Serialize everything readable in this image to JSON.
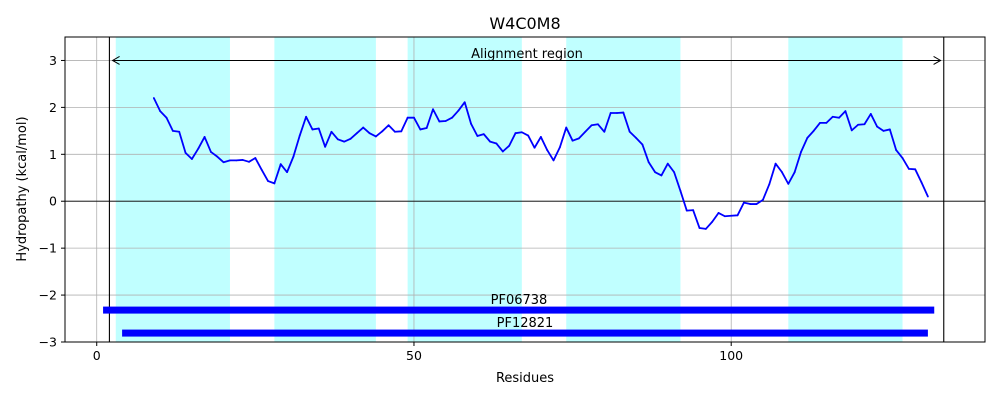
{
  "chart_data": {
    "type": "line",
    "title": "W4C0M8",
    "xlabel": "Residues",
    "ylabel": "Hydropathy (kcal/mol)",
    "xlim": [
      -5,
      140
    ],
    "ylim": [
      -3,
      3.5
    ],
    "xticks": [
      0,
      50,
      100
    ],
    "yticks": [
      -3,
      -2,
      -1,
      0,
      1,
      2,
      3
    ],
    "grid": true,
    "tm_regions": [
      [
        3,
        21
      ],
      [
        28,
        44
      ],
      [
        49,
        67
      ],
      [
        74,
        92
      ],
      [
        109,
        127
      ]
    ],
    "boundary_lines": [
      2,
      133.5
    ],
    "alignment": {
      "label": "Alignment region",
      "start": 2.5,
      "end": 133,
      "y": 3.0
    },
    "domains": [
      {
        "label": "PF06738",
        "start": 1,
        "end": 132,
        "y": -2.32
      },
      {
        "label": "PF12821",
        "start": 4,
        "end": 131,
        "y": -2.81
      }
    ],
    "series": [
      {
        "name": "Hydropathy",
        "color": "#0000ff",
        "x": [
          9,
          10,
          11,
          12,
          13,
          14,
          15,
          16,
          17,
          18,
          19,
          20,
          21,
          22,
          23,
          24,
          25,
          26,
          27,
          28,
          29,
          30,
          31,
          32,
          33,
          34,
          35,
          36,
          37,
          38,
          39,
          40,
          41,
          42,
          43,
          44,
          45,
          46,
          47,
          48,
          49,
          50,
          51,
          52,
          53,
          54,
          55,
          56,
          57,
          58,
          59,
          60,
          61,
          62,
          63,
          64,
          65,
          66,
          67,
          68,
          69,
          70,
          71,
          72,
          73,
          74,
          75,
          76,
          77,
          78,
          79,
          80,
          81,
          82,
          83,
          84,
          85,
          86,
          87,
          88,
          89,
          90,
          91,
          92,
          93,
          94,
          95,
          96,
          97,
          98,
          99,
          100,
          101,
          102,
          103,
          104,
          105,
          106,
          107,
          108,
          109,
          110,
          111,
          112,
          113,
          114,
          115,
          116,
          117,
          118,
          119,
          120,
          121,
          122,
          123,
          124,
          125,
          126,
          127,
          128,
          129,
          130,
          131
        ],
        "values": [
          2.2,
          1.92,
          1.78,
          1.5,
          1.48,
          1.03,
          0.9,
          1.12,
          1.37,
          1.05,
          0.95,
          0.83,
          0.87,
          0.87,
          0.88,
          0.84,
          0.92,
          0.67,
          0.43,
          0.38,
          0.79,
          0.62,
          0.95,
          1.4,
          1.8,
          1.53,
          1.55,
          1.16,
          1.48,
          1.32,
          1.27,
          1.33,
          1.45,
          1.57,
          1.45,
          1.38,
          1.49,
          1.62,
          1.48,
          1.49,
          1.78,
          1.78,
          1.53,
          1.56,
          1.96,
          1.7,
          1.71,
          1.78,
          1.93,
          2.11,
          1.65,
          1.39,
          1.43,
          1.27,
          1.23,
          1.06,
          1.18,
          1.45,
          1.47,
          1.4,
          1.14,
          1.37,
          1.09,
          0.87,
          1.15,
          1.57,
          1.29,
          1.34,
          1.48,
          1.62,
          1.64,
          1.48,
          1.88,
          1.88,
          1.89,
          1.48,
          1.35,
          1.21,
          0.83,
          0.62,
          0.55,
          0.8,
          0.62,
          0.22,
          -0.2,
          -0.19,
          -0.57,
          -0.59,
          -0.44,
          -0.25,
          -0.32,
          -0.31,
          -0.3,
          -0.03,
          -0.06,
          -0.06,
          0.03,
          0.36,
          0.8,
          0.62,
          0.37,
          0.62,
          1.05,
          1.35,
          1.5,
          1.67,
          1.67,
          1.8,
          1.78,
          1.92,
          1.51,
          1.63,
          1.64,
          1.86,
          1.59,
          1.5,
          1.53,
          1.09,
          0.92,
          0.69,
          0.68,
          0.4,
          0.1
        ]
      }
    ]
  }
}
